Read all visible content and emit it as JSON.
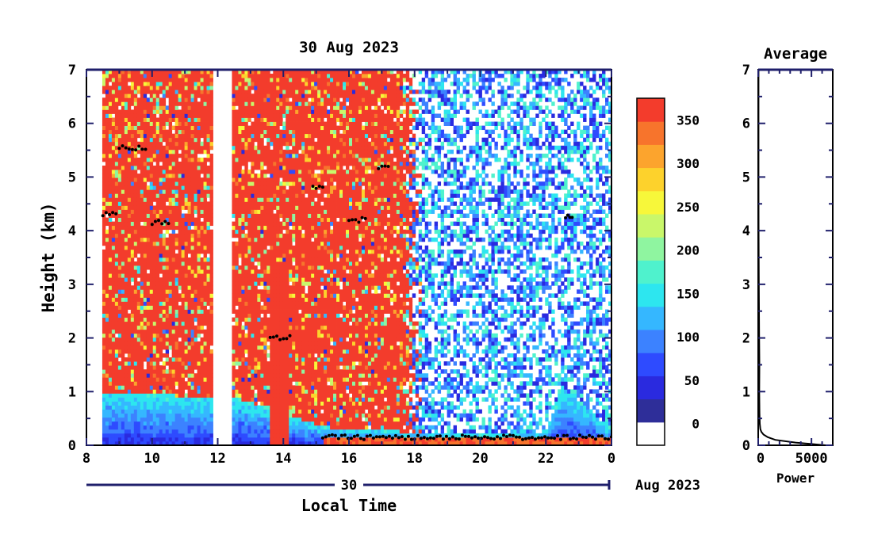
{
  "chart_data": [
    {
      "type": "heatmap",
      "title": "30 Aug 2023",
      "xlabel": "Local Time",
      "ylabel": "Height (km)",
      "x_ticks": [
        "8",
        "10",
        "12",
        "14",
        "16",
        "18",
        "20",
        "22",
        "0"
      ],
      "x_tick_values": [
        8,
        10,
        12,
        14,
        16,
        18,
        20,
        22,
        24
      ],
      "y_ticks": [
        "0",
        "1",
        "2",
        "3",
        "4",
        "5",
        "6",
        "7"
      ],
      "y_tick_values": [
        0,
        1,
        2,
        3,
        4,
        5,
        6,
        7
      ],
      "xlim": [
        8,
        24
      ],
      "ylim": [
        0,
        7
      ],
      "date_axis": {
        "day_label": "30",
        "month_label": "Aug 2023"
      },
      "data_gaps": [
        [
          8,
          8.5
        ],
        [
          11.85,
          12.45
        ]
      ],
      "surface_layer_top_km": [
        [
          8.5,
          1.0
        ],
        [
          10,
          0.95
        ],
        [
          11.8,
          0.9
        ],
        [
          12.5,
          0.9
        ],
        [
          14,
          0.6
        ],
        [
          15.2,
          0.35
        ],
        [
          16,
          0.3
        ],
        [
          18,
          0.25
        ],
        [
          20,
          0.2
        ],
        [
          22,
          0.25
        ],
        [
          22.5,
          1.1
        ],
        [
          24,
          0.3
        ]
      ],
      "cloud_features": [
        {
          "x": [
            9.0,
            9.8
          ],
          "y": 5.55
        },
        {
          "x": [
            8.5,
            8.9
          ],
          "y": 4.3
        },
        {
          "x": [
            10.0,
            10.5
          ],
          "y": 4.15
        },
        {
          "x": [
            13.6,
            14.2
          ],
          "y": 2.0
        },
        {
          "x": [
            14.9,
            15.2
          ],
          "y": 4.8
        },
        {
          "x": [
            16.9,
            17.2
          ],
          "y": 5.2
        },
        {
          "x": [
            16.0,
            16.5
          ],
          "y": 4.2
        },
        {
          "x": [
            22.6,
            22.8
          ],
          "y": 4.25
        },
        {
          "x": [
            15.2,
            24.0
          ],
          "y": 0.15
        }
      ]
    },
    {
      "type": "bar",
      "orientation": "colorbar",
      "tick_labels": [
        "0",
        "50",
        "100",
        "150",
        "200",
        "250",
        "300",
        "350"
      ],
      "tick_values": [
        0,
        50,
        100,
        150,
        200,
        250,
        300,
        350
      ],
      "range": [
        -25,
        375
      ],
      "colors": [
        "#ffffff",
        "#2e2e99",
        "#2a2adf",
        "#2e4bff",
        "#3c82ff",
        "#35b7ff",
        "#2de6ef",
        "#4ff2cd",
        "#8ff5a0",
        "#c9f76a",
        "#f7f73a",
        "#fdd22c",
        "#fca42d",
        "#f7742c",
        "#f33c2c"
      ]
    },
    {
      "type": "line",
      "title": "Average",
      "xlabel": "Power",
      "x_ticks": [
        "0",
        "5000"
      ],
      "x_tick_values": [
        0,
        5000
      ],
      "y_ticks": [
        "0",
        "1",
        "2",
        "3",
        "4",
        "5",
        "6",
        "7"
      ],
      "y_tick_values": [
        0,
        1,
        2,
        3,
        4,
        5,
        6,
        7
      ],
      "xlim": [
        0,
        7000
      ],
      "ylim": [
        0,
        7
      ],
      "x": [
        6300,
        3500,
        1600,
        900,
        500,
        300,
        200,
        150,
        120,
        100,
        110,
        90,
        60,
        40,
        30
      ],
      "y": [
        0.0,
        0.05,
        0.1,
        0.15,
        0.2,
        0.25,
        0.3,
        0.4,
        0.6,
        1.0,
        1.5,
        2.0,
        3.0,
        4.0,
        5.0
      ]
    }
  ]
}
